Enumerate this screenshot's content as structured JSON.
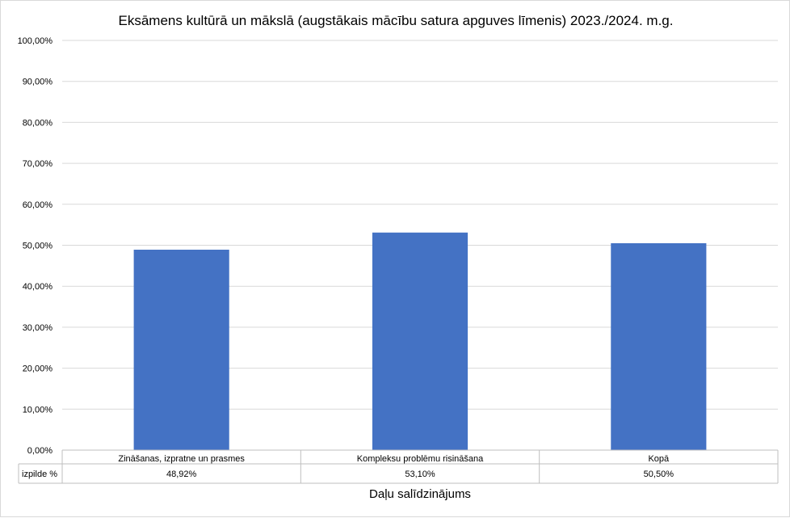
{
  "chart_data": {
    "type": "bar",
    "title": "Eksāmens kultūrā un mākslā (augstākais mācību satura apguves līmenis) 2023./2024. m.g.",
    "xlabel": "Daļu salīdzinājums",
    "ylabel": "",
    "ylim": [
      0,
      100
    ],
    "yticks": [
      "0,00%",
      "10,00%",
      "20,00%",
      "30,00%",
      "40,00%",
      "50,00%",
      "60,00%",
      "70,00%",
      "80,00%",
      "90,00%",
      "100,00%"
    ],
    "categories": [
      "Zināšanas, izpratne un prasmes",
      "Kompleksu problēmu risināšana",
      "Kopā"
    ],
    "series": [
      {
        "name": "izpilde %",
        "values": [
          48.92,
          53.1,
          50.5
        ],
        "labels": [
          "48,92%",
          "53,10%",
          "50,50%"
        ]
      }
    ],
    "bar_color": "#4472C4",
    "grid": true,
    "data_table": true,
    "legend": "none"
  }
}
